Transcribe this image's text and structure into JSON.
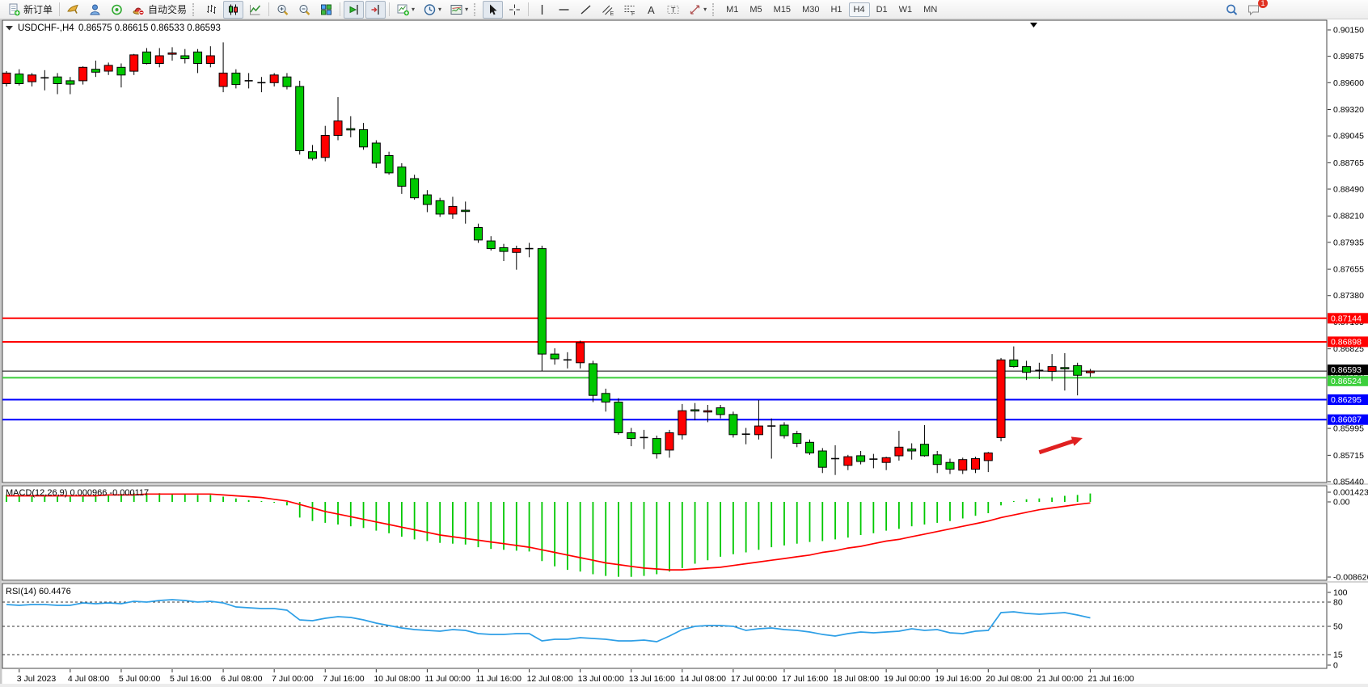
{
  "toolbar": {
    "new_order_label": "新订单",
    "auto_trading_label": "自动交易",
    "groups": [
      {
        "grip": false,
        "items": [
          {
            "icon": "new-order",
            "label": "新订单",
            "pressed": false
          }
        ]
      },
      {
        "grip": false,
        "items": [
          {
            "icon": "horn"
          },
          {
            "icon": "community"
          },
          {
            "icon": "signals"
          },
          {
            "icon": "autotrade",
            "label": "自动交易"
          }
        ]
      },
      {
        "grip": true,
        "items": [
          {
            "icon": "bar-chart"
          },
          {
            "icon": "candlesticks",
            "pressed": true
          },
          {
            "icon": "line-chart"
          }
        ]
      },
      {
        "grip": false,
        "items": [
          {
            "icon": "zoom-in"
          },
          {
            "icon": "zoom-out"
          },
          {
            "icon": "tile-windows"
          }
        ]
      },
      {
        "grip": false,
        "items": [
          {
            "icon": "auto-scroll",
            "pressed": true
          },
          {
            "icon": "chart-shift",
            "pressed": true
          }
        ]
      },
      {
        "grip": false,
        "items": [
          {
            "icon": "indicators",
            "dropdown": true
          },
          {
            "icon": "periods",
            "dropdown": true
          },
          {
            "icon": "templates",
            "dropdown": true
          }
        ]
      },
      {
        "grip": true,
        "items": [
          {
            "icon": "cursor",
            "pressed": true
          },
          {
            "icon": "crosshair"
          }
        ]
      },
      {
        "grip": false,
        "items": [
          {
            "icon": "vertical-line"
          },
          {
            "icon": "horizontal-line"
          },
          {
            "icon": "trendline"
          },
          {
            "icon": "channel"
          },
          {
            "icon": "fibonacci"
          },
          {
            "icon": "text"
          },
          {
            "icon": "text-label"
          },
          {
            "icon": "shapes",
            "dropdown": true
          }
        ]
      }
    ],
    "timeframes": [
      "M1",
      "M5",
      "M15",
      "M30",
      "H1",
      "H4",
      "D1",
      "W1",
      "MN"
    ],
    "active_timeframe": "H4",
    "notification_count": "1"
  },
  "chart": {
    "symbol_period": "USDCHF-,H4",
    "ohlc_text": "0.86575 0.86615 0.86533 0.86593",
    "macd_label": "MACD(12,26,9) 0.000966 -0.000117",
    "rsi_label": "RSI(14) 60.4476",
    "price_axis": [
      "0.90150",
      "0.89875",
      "0.89600",
      "0.89320",
      "0.89045",
      "0.88765",
      "0.88490",
      "0.88210",
      "0.87935",
      "0.87655",
      "0.87380",
      "0.87105",
      "0.86825",
      "0.86550",
      "0.86270",
      "0.85995",
      "0.85715",
      "0.85440"
    ],
    "macd_axis": [
      "0.001423",
      "0.00",
      "-0.008626"
    ],
    "rsi_axis": [
      "100",
      "80",
      "50",
      "15",
      "0"
    ],
    "rsi_levels_dashed": [
      80,
      50,
      15
    ],
    "levels": [
      {
        "price": 0.87144,
        "label": "0.87144",
        "color": "#ff0000",
        "width": 2
      },
      {
        "price": 0.86898,
        "label": "0.86898",
        "color": "#ff0000",
        "width": 2
      },
      {
        "price": 0.86524,
        "label": "0.86524",
        "color": "#3ccf3c",
        "width": 2
      },
      {
        "price": 0.86295,
        "label": "0.86295",
        "color": "#0000ff",
        "width": 2
      },
      {
        "price": 0.86087,
        "label": "0.86087",
        "color": "#0000ff",
        "width": 2
      }
    ],
    "current_price": {
      "value": 0.86593,
      "label": "0.86593",
      "color": "#000000"
    },
    "time_axis": [
      {
        "bar": 1,
        "label": "3 Jul 2023"
      },
      {
        "bar": 5,
        "label": "4 Jul 08:00"
      },
      {
        "bar": 9,
        "label": "5 Jul 00:00"
      },
      {
        "bar": 13,
        "label": "5 Jul 16:00"
      },
      {
        "bar": 17,
        "label": "6 Jul 08:00"
      },
      {
        "bar": 21,
        "label": "7 Jul 00:00"
      },
      {
        "bar": 25,
        "label": "7 Jul 16:00"
      },
      {
        "bar": 29,
        "label": "10 Jul 08:00"
      },
      {
        "bar": 33,
        "label": "11 Jul 00:00"
      },
      {
        "bar": 37,
        "label": "11 Jul 16:00"
      },
      {
        "bar": 41,
        "label": "12 Jul 08:00"
      },
      {
        "bar": 45,
        "label": "13 Jul 00:00"
      },
      {
        "bar": 49,
        "label": "13 Jul 16:00"
      },
      {
        "bar": 53,
        "label": "14 Jul 08:00"
      },
      {
        "bar": 57,
        "label": "17 Jul 00:00"
      },
      {
        "bar": 61,
        "label": "17 Jul 16:00"
      },
      {
        "bar": 65,
        "label": "18 Jul 08:00"
      },
      {
        "bar": 69,
        "label": "19 Jul 00:00"
      },
      {
        "bar": 73,
        "label": "19 Jul 16:00"
      },
      {
        "bar": 77,
        "label": "20 Jul 08:00"
      },
      {
        "bar": 81,
        "label": "21 Jul 00:00"
      },
      {
        "bar": 85,
        "label": "21 Jul 16:00"
      }
    ],
    "arrow": {
      "tail_bar": 81.0,
      "tail_price": 0.85745,
      "head_bar": 84.4,
      "head_price": 0.85895
    },
    "colors": {
      "up": "#ff0000",
      "down": "#00c800",
      "doji": "#000000",
      "macd_hist": "#00c800",
      "macd_signal": "#ff0000",
      "rsi_line": "#2e9fe6",
      "arrow": "#e02020"
    }
  },
  "chart_data": {
    "type": "candlestick",
    "symbol": "USDCHF-",
    "timeframe": "H4",
    "ohlc": {
      "open": 0.86575,
      "high": 0.86615,
      "low": 0.86533,
      "close": 0.86593
    },
    "y_axis_range": [
      0.8544,
      0.9015
    ],
    "candles": [
      [
        0.8959,
        0.8972,
        0.8956,
        0.897
      ],
      [
        0.8969,
        0.8974,
        0.8957,
        0.8959
      ],
      [
        0.8961,
        0.897,
        0.8956,
        0.8968
      ],
      [
        0.8965,
        0.8973,
        0.8952,
        0.8965
      ],
      [
        0.8966,
        0.897,
        0.8948,
        0.8959
      ],
      [
        0.8962,
        0.8966,
        0.8948,
        0.89585
      ],
      [
        0.8962,
        0.8977,
        0.8958,
        0.8976
      ],
      [
        0.8974,
        0.8983,
        0.8966,
        0.8971
      ],
      [
        0.8972,
        0.8981,
        0.8968,
        0.8978
      ],
      [
        0.8976,
        0.898,
        0.8955,
        0.8968
      ],
      [
        0.8972,
        0.899,
        0.8968,
        0.8989
      ],
      [
        0.8992,
        0.8996,
        0.8979,
        0.898
      ],
      [
        0.898,
        0.8996,
        0.8976,
        0.8988
      ],
      [
        0.899,
        0.8997,
        0.8983,
        0.8991
      ],
      [
        0.8988,
        0.8995,
        0.898,
        0.8985
      ],
      [
        0.8992,
        0.8995,
        0.897,
        0.898
      ],
      [
        0.898,
        0.8998,
        0.8976,
        0.8988
      ],
      [
        0.8956,
        0.9002,
        0.895,
        0.897
      ],
      [
        0.897,
        0.8974,
        0.8954,
        0.8958
      ],
      [
        0.8962,
        0.897,
        0.8954,
        0.8962
      ],
      [
        0.896,
        0.8966,
        0.895,
        0.896
      ],
      [
        0.896,
        0.897,
        0.8956,
        0.8968
      ],
      [
        0.8966,
        0.897,
        0.8953,
        0.8956
      ],
      [
        0.8956,
        0.8962,
        0.8885,
        0.8889
      ],
      [
        0.8888,
        0.8895,
        0.8879,
        0.8881
      ],
      [
        0.8882,
        0.8915,
        0.8878,
        0.8905
      ],
      [
        0.8905,
        0.8945,
        0.89,
        0.892
      ],
      [
        0.8912,
        0.8925,
        0.8903,
        0.89115
      ],
      [
        0.8911,
        0.8918,
        0.889,
        0.8893
      ],
      [
        0.8897,
        0.89,
        0.8871,
        0.8876
      ],
      [
        0.8884,
        0.8888,
        0.8864,
        0.8866
      ],
      [
        0.8872,
        0.8876,
        0.8844,
        0.8852
      ],
      [
        0.886,
        0.8864,
        0.8838,
        0.884
      ],
      [
        0.8843,
        0.8848,
        0.8825,
        0.8833
      ],
      [
        0.8837,
        0.884,
        0.882,
        0.8823
      ],
      [
        0.8823,
        0.8841,
        0.8818,
        0.8831
      ],
      [
        0.8827,
        0.8836,
        0.8813,
        0.8826
      ],
      [
        0.8809,
        0.8813,
        0.8793,
        0.8796
      ],
      [
        0.8795,
        0.88,
        0.8785,
        0.8787
      ],
      [
        0.8788,
        0.8792,
        0.8774,
        0.8784
      ],
      [
        0.8783,
        0.879,
        0.8765,
        0.8787
      ],
      [
        0.8787,
        0.8793,
        0.8778,
        0.8787
      ],
      [
        0.8787,
        0.879,
        0.8659,
        0.8677
      ],
      [
        0.8677,
        0.8683,
        0.8666,
        0.8672
      ],
      [
        0.8671,
        0.8679,
        0.8662,
        0.8671
      ],
      [
        0.8668,
        0.8691,
        0.8662,
        0.8689
      ],
      [
        0.8667,
        0.867,
        0.8627,
        0.8634
      ],
      [
        0.8636,
        0.8641,
        0.8617,
        0.8627
      ],
      [
        0.8627,
        0.8631,
        0.8593,
        0.8595
      ],
      [
        0.8595,
        0.86,
        0.8581,
        0.8589
      ],
      [
        0.859,
        0.8598,
        0.8578,
        0.859
      ],
      [
        0.8589,
        0.8592,
        0.8568,
        0.8573
      ],
      [
        0.8577,
        0.8598,
        0.8569,
        0.8595
      ],
      [
        0.8593,
        0.8625,
        0.8588,
        0.8618
      ],
      [
        0.8619,
        0.8626,
        0.8608,
        0.86185
      ],
      [
        0.8617,
        0.8624,
        0.8606,
        0.8618
      ],
      [
        0.8621,
        0.8624,
        0.861,
        0.8614
      ],
      [
        0.8614,
        0.8617,
        0.859,
        0.8593
      ],
      [
        0.85935,
        0.86,
        0.8583,
        0.85935
      ],
      [
        0.8593,
        0.8629,
        0.8588,
        0.8602
      ],
      [
        0.8602,
        0.861,
        0.8568,
        0.8602
      ],
      [
        0.8603,
        0.8606,
        0.8589,
        0.8592
      ],
      [
        0.8594,
        0.8597,
        0.858,
        0.8584
      ],
      [
        0.8585,
        0.8588,
        0.8572,
        0.8574
      ],
      [
        0.8576,
        0.8579,
        0.8553,
        0.8559
      ],
      [
        0.8568,
        0.8582,
        0.8551,
        0.8568
      ],
      [
        0.8561,
        0.8572,
        0.8556,
        0.857
      ],
      [
        0.8571,
        0.8576,
        0.8562,
        0.8565
      ],
      [
        0.85675,
        0.8573,
        0.8558,
        0.85675
      ],
      [
        0.8564,
        0.857,
        0.8556,
        0.8569
      ],
      [
        0.8571,
        0.8597,
        0.8566,
        0.858
      ],
      [
        0.8578,
        0.8584,
        0.8567,
        0.8576
      ],
      [
        0.8583,
        0.8603,
        0.857,
        0.8571
      ],
      [
        0.8572,
        0.8576,
        0.8553,
        0.8562
      ],
      [
        0.8564,
        0.8568,
        0.8552,
        0.8557
      ],
      [
        0.8556,
        0.8569,
        0.8552,
        0.8567
      ],
      [
        0.8557,
        0.857,
        0.8553,
        0.8568
      ],
      [
        0.8566,
        0.8575,
        0.8554,
        0.8574
      ],
      [
        0.859,
        0.8673,
        0.8586,
        0.8671
      ],
      [
        0.8671,
        0.8685,
        0.8663,
        0.8664
      ],
      [
        0.8664,
        0.867,
        0.865,
        0.8658
      ],
      [
        0.866,
        0.8668,
        0.8651,
        0.866
      ],
      [
        0.8659,
        0.8677,
        0.8649,
        0.8664
      ],
      [
        0.8663,
        0.8678,
        0.8639,
        0.86625
      ],
      [
        0.8665,
        0.8668,
        0.8634,
        0.8655
      ],
      [
        0.86575,
        0.86615,
        0.86533,
        0.86593
      ]
    ],
    "macd": {
      "params": "12,26,9",
      "main_value": 0.000966,
      "signal_value": -0.000117,
      "axis_max": 0.001423,
      "axis_min": -0.008626,
      "histogram_e4": [
        8,
        8,
        7,
        7,
        6,
        6,
        7,
        8,
        8,
        9,
        10,
        10,
        10,
        9,
        9,
        8,
        8,
        6,
        4,
        2,
        1,
        -1,
        -4,
        -18,
        -22,
        -24,
        -26,
        -28,
        -30,
        -33,
        -36,
        -40,
        -43,
        -45,
        -47,
        -48,
        -49,
        -52,
        -54,
        -55,
        -56,
        -57,
        -68,
        -74,
        -78,
        -80,
        -83,
        -85,
        -86,
        -86,
        -85,
        -83,
        -80,
        -76,
        -71,
        -67,
        -63,
        -60,
        -58,
        -55,
        -52,
        -50,
        -48,
        -46,
        -45,
        -43,
        -41,
        -38,
        -36,
        -33,
        -31,
        -28,
        -26,
        -24,
        -22,
        -19,
        -16,
        -13,
        -4,
        1,
        3,
        4,
        5,
        7,
        8,
        9.66
      ],
      "signal_e4": [
        7,
        7,
        7,
        7,
        7,
        7,
        7,
        7,
        8,
        8,
        8,
        9,
        9,
        9,
        9,
        9,
        9,
        8,
        7,
        6,
        5,
        3,
        1,
        -3,
        -7,
        -11,
        -14,
        -17,
        -20,
        -23,
        -26,
        -29,
        -32,
        -35,
        -38,
        -40,
        -42,
        -44,
        -46,
        -48,
        -50,
        -52,
        -55,
        -58,
        -61,
        -64,
        -67,
        -70,
        -72,
        -74,
        -76,
        -77,
        -78,
        -78,
        -77,
        -76,
        -75,
        -73,
        -71,
        -69,
        -67,
        -65,
        -63,
        -61,
        -58,
        -56,
        -53,
        -51,
        -48,
        -45,
        -43,
        -40,
        -37,
        -34,
        -31,
        -28,
        -25,
        -22,
        -18,
        -15,
        -12,
        -9,
        -7,
        -5,
        -3,
        -1.17
      ]
    },
    "rsi": {
      "period": 14,
      "value": 60.4476,
      "values": [
        77,
        76,
        77,
        77,
        76,
        76,
        79,
        78,
        79,
        78,
        81,
        80,
        82,
        83,
        82,
        80,
        81,
        79,
        74,
        73,
        72,
        72,
        70,
        58,
        57,
        60,
        62,
        61,
        58,
        54,
        51,
        48,
        46,
        45,
        44,
        46,
        45,
        41,
        40,
        40,
        41,
        41,
        32,
        34,
        34,
        36,
        35,
        34,
        32,
        32,
        33,
        31,
        38,
        46,
        50,
        51,
        51,
        50,
        45,
        47,
        48,
        46,
        45,
        43,
        40,
        38,
        41,
        43,
        42,
        43,
        44,
        47,
        45,
        46,
        42,
        41,
        44,
        45,
        67,
        68,
        66,
        65,
        66,
        67,
        64,
        60.45
      ]
    }
  }
}
